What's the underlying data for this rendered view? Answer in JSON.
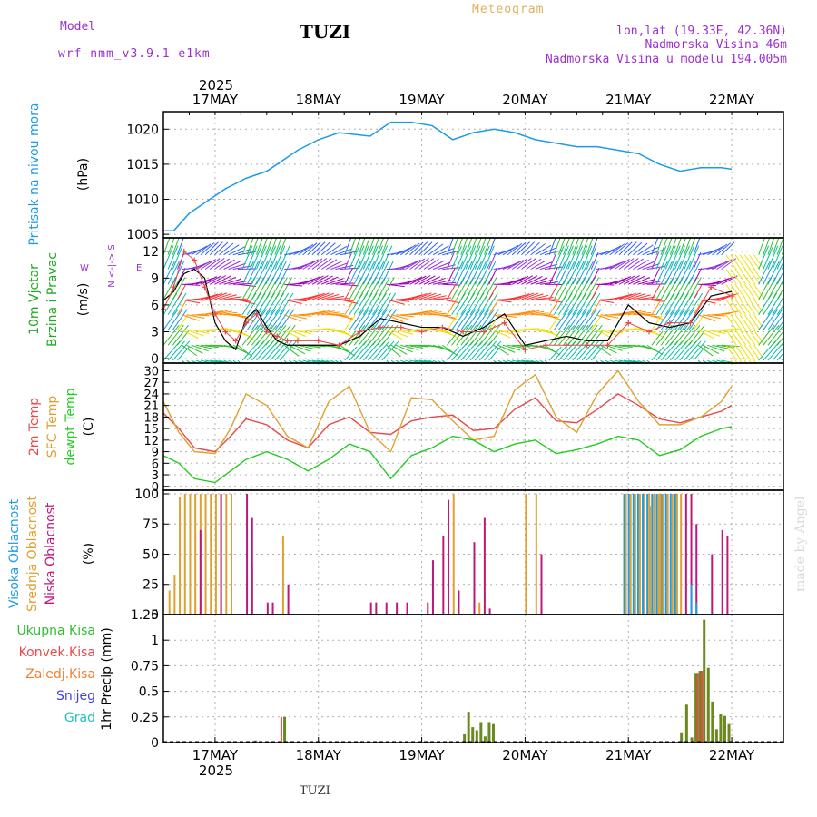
{
  "header": {
    "model_label": "Model",
    "model_name": "wrf-nmm_v3.9.1 e1km",
    "station": "TUZI",
    "product": "Meteogram",
    "lonlat": "lon,lat (19.33E, 42.36N)",
    "elevation": "Nadmorska Visina 46m",
    "model_elevation": "Nadmorska Visina u modelu 194.005m",
    "footer_station": "TUZI",
    "credit": "made by Angel"
  },
  "colors": {
    "pressure": "#1e9be6",
    "t2m": "#e8484a",
    "sfc": "#e0a030",
    "dew": "#22cc22",
    "wind_black": "#000000",
    "wind_red": "#e8484a",
    "cloud_high": "#1e9be6",
    "cloud_mid": "#e0a030",
    "cloud_low": "#c0187a",
    "precip_total": "#2fbf2f",
    "precip_conv": "#e8484a",
    "precip_freezing": "#f08030",
    "precip_snow": "#4040e0",
    "precip_hail": "#20c0c0",
    "grid": "#b0b0b0",
    "header_purple": "#9b30d0",
    "header_orange": "#e0b060"
  },
  "chart_data": [
    {
      "type": "line",
      "panel": "pressure",
      "ylabel_name": "Pritisak na nivou mora",
      "ylabel_unit": "(hPa)",
      "ylim": [
        1004.5,
        1022.5
      ],
      "yticks": [
        1005,
        1010,
        1015,
        1020
      ],
      "x_days": [
        0.5,
        0.6,
        0.75,
        0.9,
        1.1,
        1.3,
        1.5,
        1.8,
        2.0,
        2.2,
        2.5,
        2.7,
        2.9,
        3.1,
        3.3,
        3.5,
        3.7,
        3.9,
        4.1,
        4.3,
        4.5,
        4.7,
        4.9,
        5.1,
        5.3,
        5.5,
        5.7,
        5.9,
        6.0
      ],
      "series": [
        {
          "name": "Pritisak na nivou mora",
          "values": [
            1005.5,
            1005.5,
            1008,
            1009.5,
            1011.5,
            1013,
            1014,
            1017,
            1018.5,
            1019.5,
            1019,
            1021,
            1021,
            1020.5,
            1018.5,
            1019.5,
            1020,
            1019.5,
            1018.5,
            1018,
            1017.5,
            1017.5,
            1017,
            1016.5,
            1015,
            1014,
            1014.5,
            1014.5,
            1014.3
          ]
        }
      ]
    },
    {
      "type": "line",
      "panel": "wind",
      "ylabel_name1": "10m Vjetar",
      "ylabel_name2": "Brzina i Pravac",
      "ylabel_unit": "(m/s)",
      "compass_ns": "N <-|-> S",
      "compass_w": "W",
      "compass_e": "E",
      "ylim": [
        -0.5,
        13.5
      ],
      "yticks": [
        0,
        3,
        6,
        9,
        12
      ],
      "x_days": [
        0.5,
        0.6,
        0.7,
        0.8,
        0.9,
        1.0,
        1.1,
        1.2,
        1.3,
        1.4,
        1.5,
        1.6,
        1.7,
        1.8,
        2.0,
        2.2,
        2.4,
        2.6,
        2.8,
        3.0,
        3.2,
        3.4,
        3.6,
        3.8,
        4.0,
        4.2,
        4.4,
        4.6,
        4.8,
        5.0,
        5.2,
        5.4,
        5.6,
        5.8,
        6.0
      ],
      "series": [
        {
          "name": "brzina",
          "values": [
            6.5,
            7.5,
            9.5,
            10,
            9,
            4,
            2,
            1,
            4.5,
            5.5,
            3.5,
            2,
            1.5,
            1.5,
            1.5,
            1.5,
            2.5,
            4.5,
            4,
            3.5,
            3.5,
            2.5,
            3.5,
            5,
            1.5,
            2,
            2.5,
            2,
            2,
            6,
            4,
            3.5,
            4,
            7,
            7.5
          ]
        },
        {
          "name": "udar",
          "values": [
            5.5,
            8,
            12,
            11,
            8,
            5,
            3,
            2,
            4,
            5,
            3,
            2.5,
            2,
            2,
            2,
            1.5,
            3,
            3.5,
            3.5,
            3,
            3.5,
            3,
            3,
            4,
            1,
            1.5,
            1.5,
            1.5,
            1.5,
            4,
            3,
            4,
            4,
            8,
            7
          ]
        }
      ]
    },
    {
      "type": "line",
      "panel": "temperature",
      "ylabel_name1": "2m Temp",
      "ylabel_name2": "SFC Temp",
      "ylabel_name3": "dewpt Temp",
      "ylabel_unit": "(C)",
      "ylim": [
        -1,
        32
      ],
      "yticks": [
        0,
        3,
        6,
        9,
        12,
        15,
        18,
        21,
        24,
        27,
        30
      ],
      "x_days": [
        0.5,
        0.65,
        0.8,
        1.0,
        1.15,
        1.3,
        1.5,
        1.7,
        1.9,
        2.1,
        2.3,
        2.5,
        2.7,
        2.9,
        3.1,
        3.3,
        3.5,
        3.7,
        3.9,
        4.1,
        4.3,
        4.5,
        4.7,
        4.9,
        5.1,
        5.3,
        5.5,
        5.7,
        5.9,
        6.0
      ],
      "series": [
        {
          "name": "2m Temp",
          "values": [
            19,
            15,
            10,
            9,
            13,
            17.5,
            16,
            12,
            10,
            16,
            18,
            14,
            13.5,
            17,
            18,
            18.5,
            14.5,
            15,
            20,
            23,
            17,
            16.5,
            20,
            24,
            21,
            17.5,
            16.5,
            18,
            19.5,
            21
          ]
        },
        {
          "name": "SFC Temp",
          "values": [
            22,
            14,
            9,
            8.5,
            15,
            24,
            21,
            13,
            10,
            22,
            26,
            14,
            9,
            23,
            22.5,
            17,
            12,
            13,
            25,
            29,
            18,
            14,
            24,
            30,
            22,
            16,
            16,
            18,
            22,
            26
          ]
        },
        {
          "name": "dewpt Temp",
          "values": [
            8,
            6,
            2,
            1,
            4,
            7,
            9,
            7,
            4,
            7,
            11,
            9,
            2,
            8,
            10,
            13,
            12,
            9,
            11,
            12,
            8.5,
            9.5,
            11,
            13,
            12,
            8,
            9.5,
            13,
            15,
            15.5
          ]
        }
      ]
    },
    {
      "type": "bar",
      "panel": "cloud",
      "ylabel_name1": "Visoka Oblacnost",
      "ylabel_name2": "Srednja Oblacnost",
      "ylabel_name3": "Niska Oblacnost",
      "ylabel_unit": "(%)",
      "ylim": [
        0,
        103
      ],
      "yticks": [
        0,
        25,
        50,
        75,
        100
      ],
      "series": [
        {
          "name": "Srednja Oblacnost",
          "x_days": [
            0.55,
            0.6,
            0.65,
            0.7,
            0.75,
            0.8,
            0.85,
            0.9,
            0.95,
            1.0,
            1.05,
            1.1,
            1.15,
            1.35,
            1.65,
            3.3,
            3.55,
            4.0,
            4.1,
            5.2,
            5.3,
            5.5
          ],
          "values": [
            20,
            33,
            97,
            100,
            100,
            100,
            100,
            100,
            100,
            100,
            100,
            100,
            100,
            40,
            65,
            100,
            10,
            100,
            100,
            90,
            100,
            100
          ]
        },
        {
          "name": "Niska Oblacnost",
          "x_days": [
            0.85,
            1.05,
            1.3,
            1.35,
            1.5,
            1.55,
            1.7,
            2.5,
            2.55,
            2.65,
            2.75,
            2.85,
            3.05,
            3.1,
            3.2,
            3.25,
            3.35,
            3.5,
            3.6,
            3.65,
            4.15,
            5.55,
            5.6,
            5.65,
            5.8,
            5.9,
            5.95
          ],
          "values": [
            70,
            100,
            100,
            80,
            10,
            10,
            25,
            10,
            10,
            10,
            10,
            10,
            10,
            45,
            65,
            95,
            20,
            60,
            80,
            5,
            50,
            100,
            100,
            75,
            50,
            70,
            65
          ]
        },
        {
          "name": "Visoka Oblacnost",
          "x_days": [
            5.6,
            5.65
          ],
          "values": [
            25,
            10
          ]
        }
      ],
      "overcast_band": {
        "from_day": 4.95,
        "to_day": 5.45,
        "value": 100
      }
    },
    {
      "type": "bar",
      "panel": "precip",
      "ylabel": "1hr Precip (mm)",
      "ylim": [
        0,
        1.25
      ],
      "yticks": [
        0,
        0.25,
        0.5,
        0.75,
        1,
        1.25
      ],
      "legend": [
        "Ukupna Kisa",
        "Konvek.Kisa",
        "Zaledj.Kisa",
        "Snijeg",
        "Grad"
      ],
      "series": [
        {
          "name": "Ukupna Kisa",
          "x_days": [
            1.38,
            1.66,
            3.4,
            3.44,
            3.48,
            3.52,
            3.56,
            3.6,
            3.64,
            3.68,
            5.5,
            5.55,
            5.6,
            5.64,
            5.68,
            5.72,
            5.76,
            5.8,
            5.84,
            5.88,
            5.92,
            5.96
          ],
          "values": [
            0.02,
            0.25,
            0.08,
            0.3,
            0.15,
            0.12,
            0.2,
            0.06,
            0.2,
            0.18,
            0.1,
            0.37,
            0.05,
            0.68,
            0.7,
            1.2,
            0.73,
            0.4,
            0.13,
            0.28,
            0.26,
            0.18
          ]
        },
        {
          "name": "Konvek.Kisa",
          "x_days": [
            1.65,
            5.68,
            5.72
          ],
          "values": [
            0.25,
            0.68,
            0.7
          ]
        }
      ]
    }
  ],
  "x_axis": {
    "day_ticks": [
      1,
      2,
      3,
      4,
      5,
      6
    ],
    "day_labels": [
      "17MAY",
      "18MAY",
      "19MAY",
      "20MAY",
      "21MAY",
      "22MAY"
    ],
    "year_label": "2025",
    "xlim_days": [
      0.5,
      6.5
    ]
  }
}
